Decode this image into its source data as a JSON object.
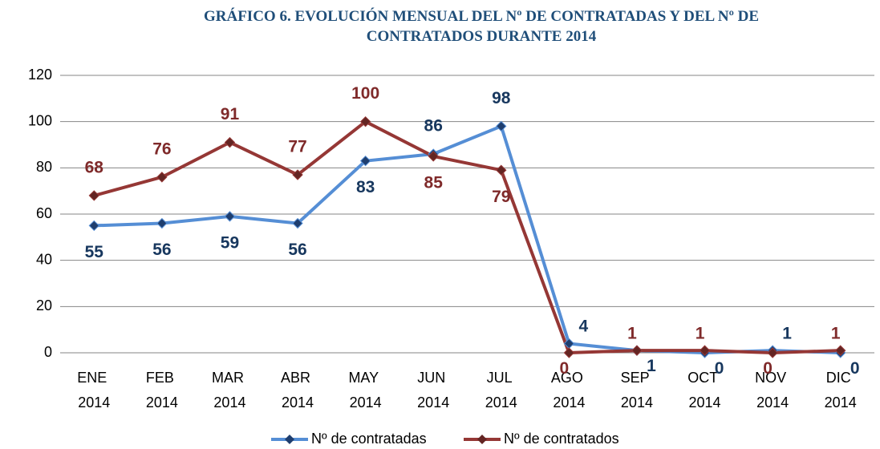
{
  "chart_data": {
    "type": "line",
    "title": "GRÁFICO 6. EVOLUCIÓN MENSUAL DEL Nº  DE CONTRATADAS Y DEL Nº DE CONTRATADOS DURANTE 2014",
    "categories": [
      "ENE 2014",
      "FEB 2014",
      "MAR 2014",
      "ABR 2014",
      "MAY 2014",
      "JUN 2014",
      "JUL 2014",
      "AGO 2014",
      "SEP 2014",
      "OCT 2014",
      "NOV 2014",
      "DIC 2014"
    ],
    "series": [
      {
        "name": "Nº de contratadas",
        "color": "#558ed5",
        "marker_color": "#1f3e6e",
        "label_color": "#17375e",
        "values": [
          55,
          56,
          59,
          56,
          83,
          86,
          98,
          4,
          1,
          0,
          1,
          0
        ]
      },
      {
        "name": "Nº de contratados",
        "color": "#953735",
        "marker_color": "#632523",
        "label_color": "#7f2a2a",
        "values": [
          68,
          76,
          91,
          77,
          100,
          85,
          79,
          0,
          1,
          1,
          0,
          1
        ]
      }
    ],
    "ylim": [
      0,
      120
    ],
    "yticks": [
      0,
      20,
      40,
      60,
      80,
      100,
      120
    ],
    "grid": true,
    "legend": "bottom"
  }
}
